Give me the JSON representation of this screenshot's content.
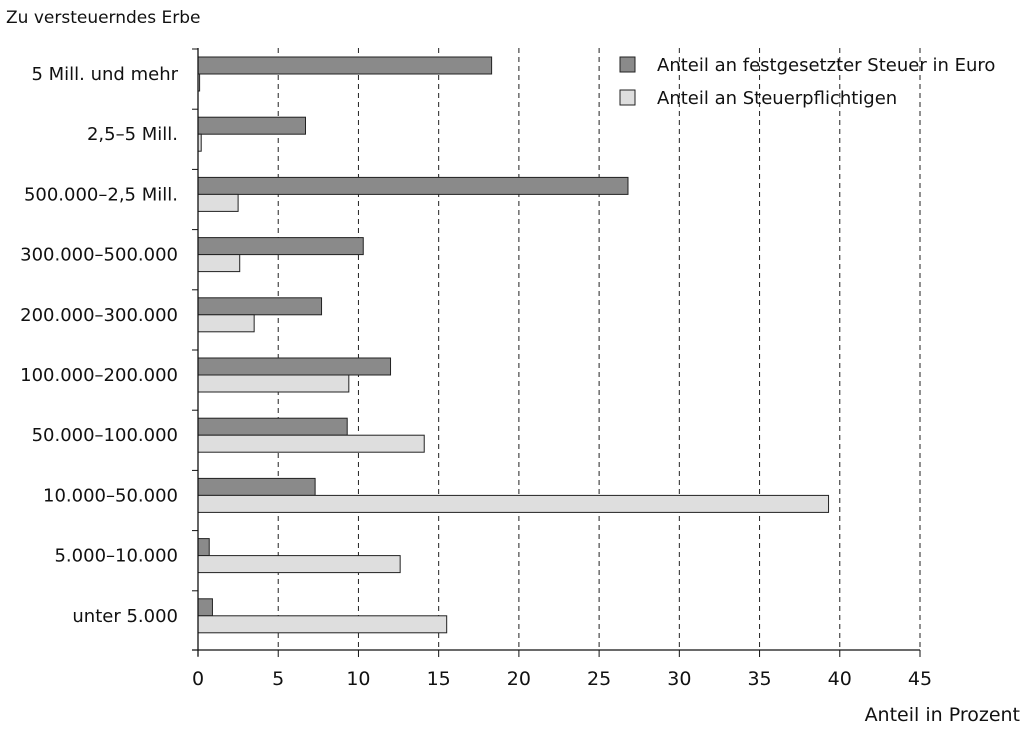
{
  "chart_data": {
    "type": "bar",
    "orientation": "horizontal",
    "title": "",
    "ylabel": "Zu versteuerndes Erbe",
    "xlabel": "Anteil in Prozent",
    "xlim": [
      0,
      45
    ],
    "xticks": [
      0,
      5,
      10,
      15,
      20,
      25,
      30,
      35,
      40,
      45
    ],
    "grid": "vertical dashed",
    "legend_position": "top-right",
    "categories": [
      "5 Mill. und mehr",
      "2,5–5 Mill.",
      "500.000–2,5 Mill.",
      "300.000–500.000",
      "200.000–300.000",
      "100.000–200.000",
      "50.000–100.000",
      "10.000–50.000",
      "5.000–10.000",
      "unter 5.000"
    ],
    "series": [
      {
        "name": "Anteil an festgesetzter Steuer in Euro",
        "color": "#8a8a8a",
        "values": [
          18.3,
          6.7,
          26.8,
          10.3,
          7.7,
          12.0,
          9.3,
          7.3,
          0.7,
          0.9
        ]
      },
      {
        "name": "Anteil an Steuerpflichtigen",
        "color": "#dedede",
        "values": [
          0.1,
          0.2,
          2.5,
          2.6,
          3.5,
          9.4,
          14.1,
          39.3,
          12.6,
          15.5
        ]
      }
    ]
  }
}
